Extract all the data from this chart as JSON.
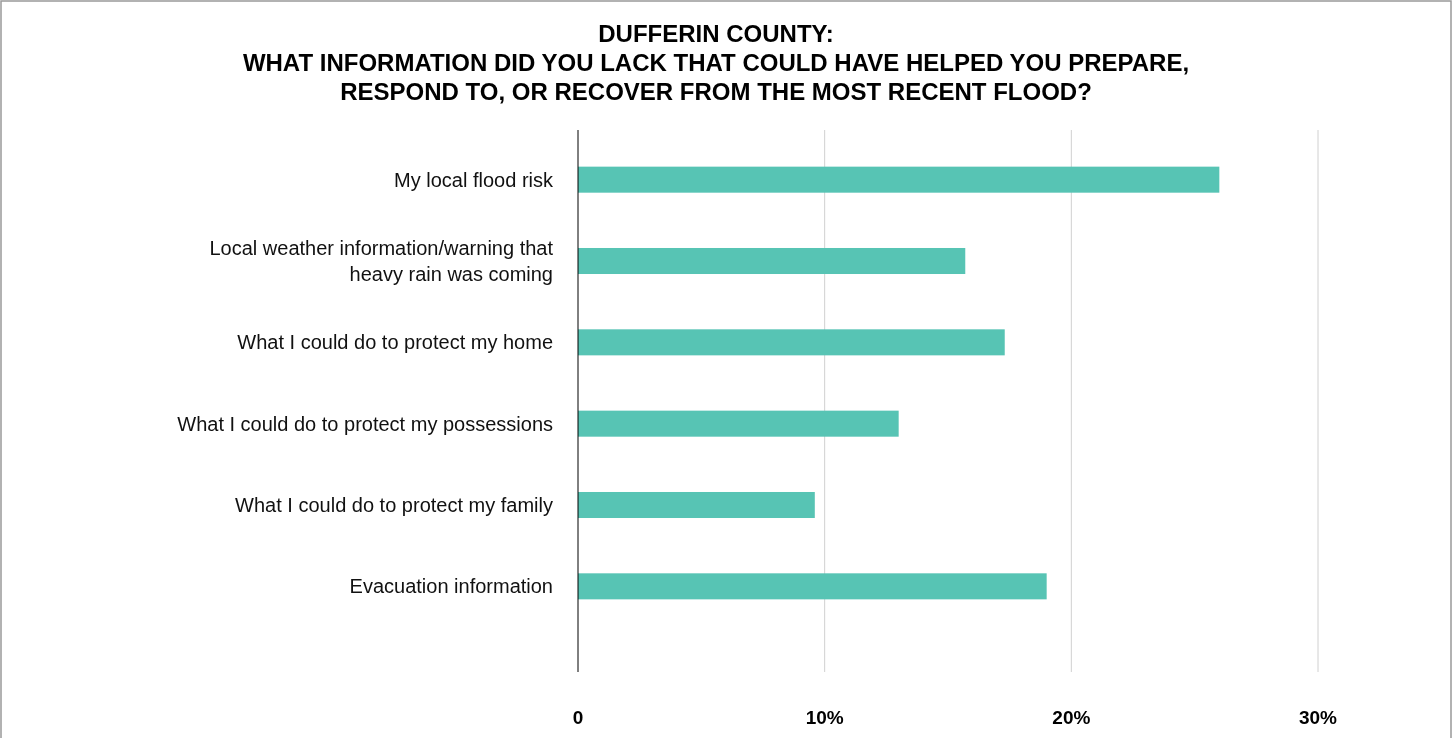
{
  "chart_data": {
    "type": "bar",
    "orientation": "horizontal",
    "title": "DUFFERIN COUNTY:\nWHAT INFORMATION DID YOU LACK THAT COULD HAVE HELPED YOU PREPARE,\nRESPOND TO, OR RECOVER FROM THE MOST RECENT FLOOD?",
    "categories": [
      "My local flood risk",
      "Local weather information/warning that heavy rain was coming",
      "What I could do to protect my home",
      "What I could do to protect my possessions",
      "What I could do to protect my family",
      "Evacuation information"
    ],
    "values": [
      26,
      15.7,
      17.3,
      13,
      9.6,
      19
    ],
    "color": "#57c4b4",
    "xlim": [
      0,
      30
    ],
    "xticks": [
      {
        "value": 0,
        "label": "0"
      },
      {
        "value": 10,
        "label": "10%"
      },
      {
        "value": 20,
        "label": "20%"
      },
      {
        "value": 30,
        "label": "30%"
      }
    ],
    "grid": "x"
  }
}
